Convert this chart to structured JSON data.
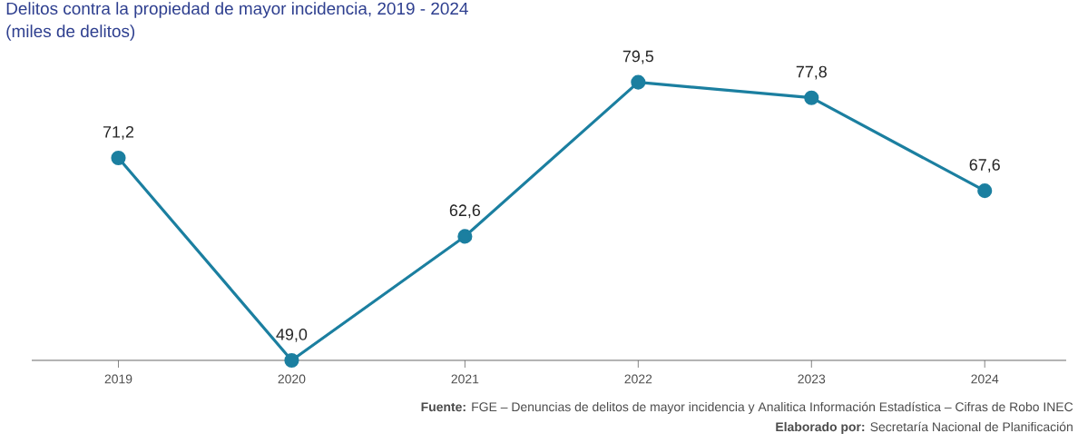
{
  "chart_data": {
    "type": "line",
    "title": "Delitos contra la propiedad de mayor incidencia, 2019 - 2024",
    "subtitle": "(miles de delitos)",
    "categories": [
      "2019",
      "2020",
      "2021",
      "2022",
      "2023",
      "2024"
    ],
    "values": [
      71.2,
      49.0,
      62.6,
      79.5,
      77.8,
      67.6
    ],
    "value_labels": [
      "71,2",
      "49,0",
      "62,6",
      "79,5",
      "77,8",
      "67,6"
    ],
    "color": "#1b7fa0",
    "marker": "circle",
    "line_style": "solid",
    "grid": false,
    "tick_labels": "x",
    "annotations": [
      "**Fuente:** FGE – Denuncias de delitos de mayor incidencia y Analitica Información Estadística – Cifras de Robo INEC",
      "**Elaborado por:** Secretaría Nacional de Planificación"
    ]
  }
}
